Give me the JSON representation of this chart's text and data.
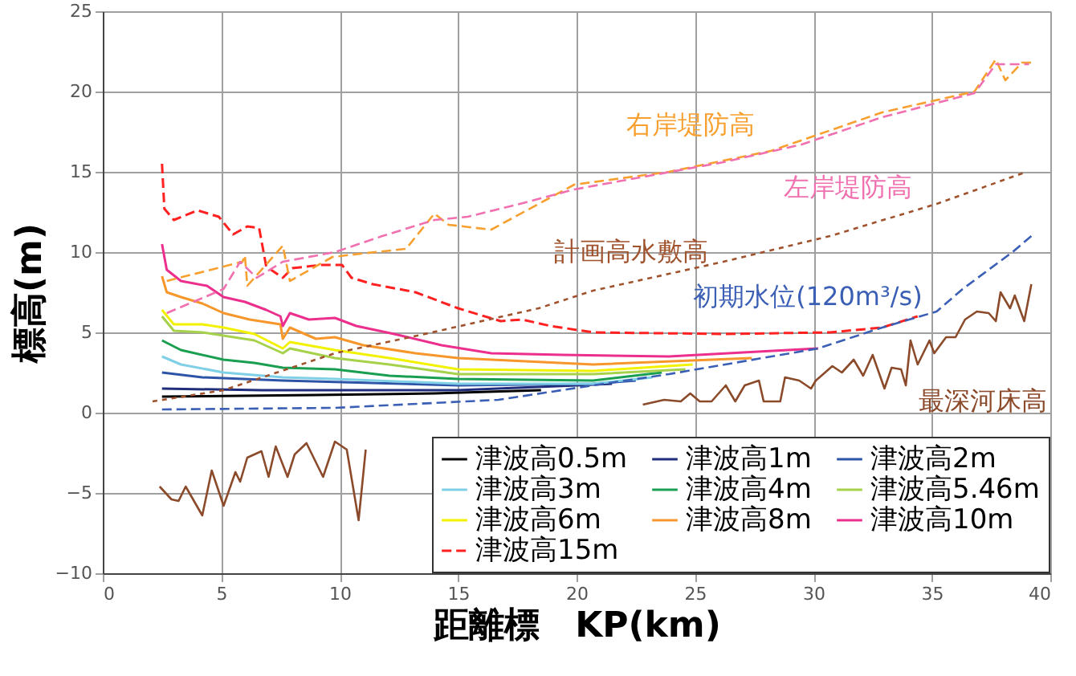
{
  "chart_data": {
    "type": "line",
    "xlabel": "距離標　KP(km)",
    "ylabel": "標高(m)",
    "xlim": [
      0,
      40
    ],
    "xticks": [
      0,
      5,
      10,
      15,
      20,
      25,
      30,
      35,
      40
    ],
    "ylim": [
      -10,
      25
    ],
    "yticks": [
      -10,
      -5,
      0,
      5,
      10,
      15,
      20,
      25
    ],
    "grid": true,
    "legend": "bottom right",
    "marker": "none",
    "series": [
      {
        "name": "津波高0.5m",
        "color": "#000000",
        "line_style": "solid",
        "x": [
          2.5,
          9.0,
          14.0,
          18.5
        ],
        "values": [
          1.0,
          1.1,
          1.2,
          1.4
        ]
      },
      {
        "name": "津波高1m",
        "color": "#1f2d7a",
        "line_style": "solid",
        "x": [
          2.5,
          6.7,
          15.0,
          20.0,
          21.5
        ],
        "values": [
          1.5,
          1.4,
          1.4,
          1.7,
          1.8
        ]
      },
      {
        "name": "津波高2m",
        "color": "#2e54a8",
        "line_style": "solid",
        "x": [
          2.5,
          4.2,
          7.6,
          15.0,
          20.7,
          22.5
        ],
        "values": [
          2.5,
          2.2,
          2.0,
          1.7,
          1.8,
          2.0
        ]
      },
      {
        "name": "津波高3m",
        "color": "#7fd0e6",
        "line_style": "solid",
        "x": [
          2.5,
          3.3,
          5.1,
          7.6,
          9.8,
          15.0,
          20.7,
          23.2
        ],
        "values": [
          3.5,
          3.0,
          2.5,
          2.2,
          2.1,
          1.8,
          1.8,
          2.2
        ]
      },
      {
        "name": "津波高4m",
        "color": "#1a9e50",
        "line_style": "solid",
        "x": [
          2.5,
          3.3,
          5.1,
          6.4,
          7.6,
          9.8,
          12.1,
          15.0,
          20.7,
          23.6
        ],
        "values": [
          4.5,
          3.9,
          3.3,
          3.1,
          2.8,
          2.7,
          2.3,
          2.1,
          2.0,
          2.5
        ]
      },
      {
        "name": "津波高5.46m",
        "color": "#a6d14a",
        "line_style": "solid",
        "x": [
          2.5,
          3.0,
          4.2,
          6.4,
          7.6,
          7.9,
          9.8,
          12.1,
          15.0,
          20.7,
          24.6
        ],
        "values": [
          6.0,
          5.1,
          5.0,
          4.5,
          3.7,
          4.0,
          3.4,
          3.0,
          2.4,
          2.4,
          2.7
        ]
      },
      {
        "name": "津波高6m",
        "color": "#f2f200",
        "line_style": "solid",
        "x": [
          2.5,
          3.0,
          4.2,
          5.1,
          6.4,
          7.6,
          7.9,
          9.8,
          12.1,
          15.0,
          20.7,
          24.9
        ],
        "values": [
          6.4,
          5.5,
          5.5,
          5.3,
          4.9,
          4.0,
          4.4,
          3.9,
          3.4,
          2.7,
          2.6,
          3.0
        ]
      },
      {
        "name": "津波高8m",
        "color": "#f7962a",
        "line_style": "solid",
        "x": [
          2.5,
          2.7,
          3.3,
          4.2,
          5.1,
          6.2,
          7.5,
          7.6,
          7.9,
          9.0,
          9.8,
          11.0,
          13.2,
          15.0,
          20.7,
          27.4
        ],
        "values": [
          8.5,
          7.5,
          7.2,
          6.8,
          6.2,
          5.8,
          5.5,
          4.6,
          5.3,
          4.6,
          4.7,
          4.2,
          3.7,
          3.4,
          3.0,
          3.4
        ]
      },
      {
        "name": "津波高10m",
        "color": "#ec2f8c",
        "line_style": "solid",
        "x": [
          2.5,
          2.7,
          3.3,
          4.4,
          5.1,
          6.0,
          6.9,
          7.5,
          7.6,
          7.9,
          8.7,
          9.8,
          10.7,
          12.3,
          14.3,
          16.4,
          19.4,
          23.9,
          30.2
        ],
        "values": [
          10.5,
          8.9,
          8.2,
          7.9,
          7.2,
          6.9,
          6.4,
          6.0,
          5.4,
          6.2,
          5.8,
          5.9,
          5.4,
          4.9,
          4.2,
          3.7,
          3.6,
          3.5,
          4.0
        ]
      },
      {
        "name": "津波高15m",
        "color": "#ff2020",
        "line_style": "dashed",
        "x": [
          2.5,
          2.6,
          3.0,
          4.0,
          4.9,
          5.5,
          6.1,
          6.6,
          6.9,
          7.6,
          8.0,
          9.2,
          10.1,
          10.5,
          11.4,
          13.2,
          15.0,
          16.8,
          17.7,
          18.9,
          20.7,
          26.2,
          30.7,
          32.9,
          34.4
        ],
        "values": [
          15.5,
          12.7,
          12.0,
          12.6,
          12.2,
          11.1,
          11.6,
          11.5,
          9.1,
          8.4,
          9.0,
          9.2,
          9.2,
          8.4,
          8.0,
          7.5,
          6.5,
          5.7,
          5.8,
          5.4,
          5.0,
          4.9,
          5.0,
          5.3,
          6.0
        ]
      },
      {
        "color": "#f7a030",
        "line_style": "dashed",
        "x": [
          2.7,
          5.9,
          6.0,
          6.1,
          7.6,
          7.9,
          9.7,
          11.5,
          12.8,
          14.0,
          14.6,
          16.4,
          19.9,
          23.9,
          28.2,
          32.9,
          36.8,
          37.7,
          38.1,
          38.8,
          39.2
        ],
        "values": [
          8.2,
          9.4,
          9.8,
          7.9,
          10.4,
          8.2,
          9.7,
          10.0,
          10.2,
          12.4,
          11.7,
          11.4,
          14.2,
          15.0,
          16.3,
          18.7,
          20.0,
          22.0,
          20.7,
          21.8,
          21.8
        ]
      },
      {
        "color": "#f070b0",
        "line_style": "dashed",
        "x": [
          2.7,
          5.1,
          5.8,
          6.5,
          7.6,
          9.8,
          11.8,
          14.0,
          15.4,
          17.6,
          19.9,
          26.2,
          29.5,
          32.9,
          36.8,
          37.7,
          39.1
        ],
        "values": [
          6.2,
          7.7,
          9.4,
          8.4,
          9.4,
          10.0,
          11.0,
          12.0,
          12.2,
          13.0,
          13.9,
          15.6,
          16.7,
          18.4,
          19.9,
          21.7,
          21.7
        ]
      },
      {
        "color": "#a0522d",
        "line_style": "dotted",
        "x": [
          2.1,
          5.1,
          9.8,
          13.9,
          18.4,
          20.7,
          26.2,
          30.7,
          35.2,
          39.0
        ],
        "values": [
          0.7,
          1.4,
          3.7,
          5.0,
          6.5,
          7.6,
          9.4,
          11.0,
          13.0,
          15.0
        ]
      },
      {
        "color": "#3a5fb5",
        "line_style": "dashed",
        "x": [
          2.5,
          9.8,
          16.7,
          20.7,
          23.9,
          30.2,
          32.9,
          35.2,
          36.3,
          38.4,
          39.2
        ],
        "values": [
          0.2,
          0.3,
          0.8,
          1.7,
          2.4,
          4.0,
          5.3,
          6.3,
          7.7,
          10.0,
          11.0
        ]
      },
      {
        "color": "#8b4a2a",
        "line_style": "solid",
        "x": [
          2.4,
          2.9,
          3.2,
          3.5,
          4.2,
          4.6,
          5.1,
          5.6,
          5.8,
          6.1,
          6.7,
          7.0,
          7.3,
          7.8,
          8.1,
          8.6,
          9.3,
          9.8,
          10.3,
          10.8,
          11.1,
          16.8,
          22.8,
          23.7,
          24.4,
          24.8,
          25.2,
          25.7,
          26.3,
          26.7,
          27.1,
          27.7,
          27.9,
          28.6,
          28.8,
          29.4,
          29.9,
          30.1,
          30.8,
          31.2,
          31.7,
          32.1,
          32.5,
          33.0,
          33.3,
          33.7,
          33.9,
          34.1,
          34.4,
          34.9,
          35.1,
          35.6,
          36.0,
          36.4,
          36.9,
          37.4,
          37.7,
          37.9,
          38.3,
          38.5,
          38.9,
          39.2
        ],
        "values": [
          -4.6,
          -5.4,
          -5.5,
          -4.6,
          -6.4,
          -3.6,
          -5.8,
          -3.7,
          -4.3,
          -2.8,
          -2.4,
          -4.0,
          -2.1,
          -4.0,
          -2.6,
          -1.9,
          -4.0,
          -1.8,
          -2.3,
          -6.7,
          -2.3,
          null,
          0.5,
          0.8,
          0.7,
          1.2,
          0.7,
          0.7,
          1.7,
          0.7,
          1.7,
          2.0,
          0.7,
          0.7,
          2.2,
          2.0,
          1.5,
          2.0,
          2.9,
          2.5,
          3.3,
          2.3,
          3.6,
          1.5,
          2.8,
          2.7,
          1.7,
          4.5,
          3.0,
          4.5,
          3.7,
          4.7,
          4.7,
          5.8,
          6.3,
          6.2,
          5.7,
          7.5,
          6.5,
          7.3,
          5.7,
          8.0
        ]
      }
    ],
    "annotations": [
      "右岸堤防高",
      "左岸堤防高",
      "計画高水敷高",
      "初期水位(120m³/s)",
      "最深河床高"
    ]
  }
}
